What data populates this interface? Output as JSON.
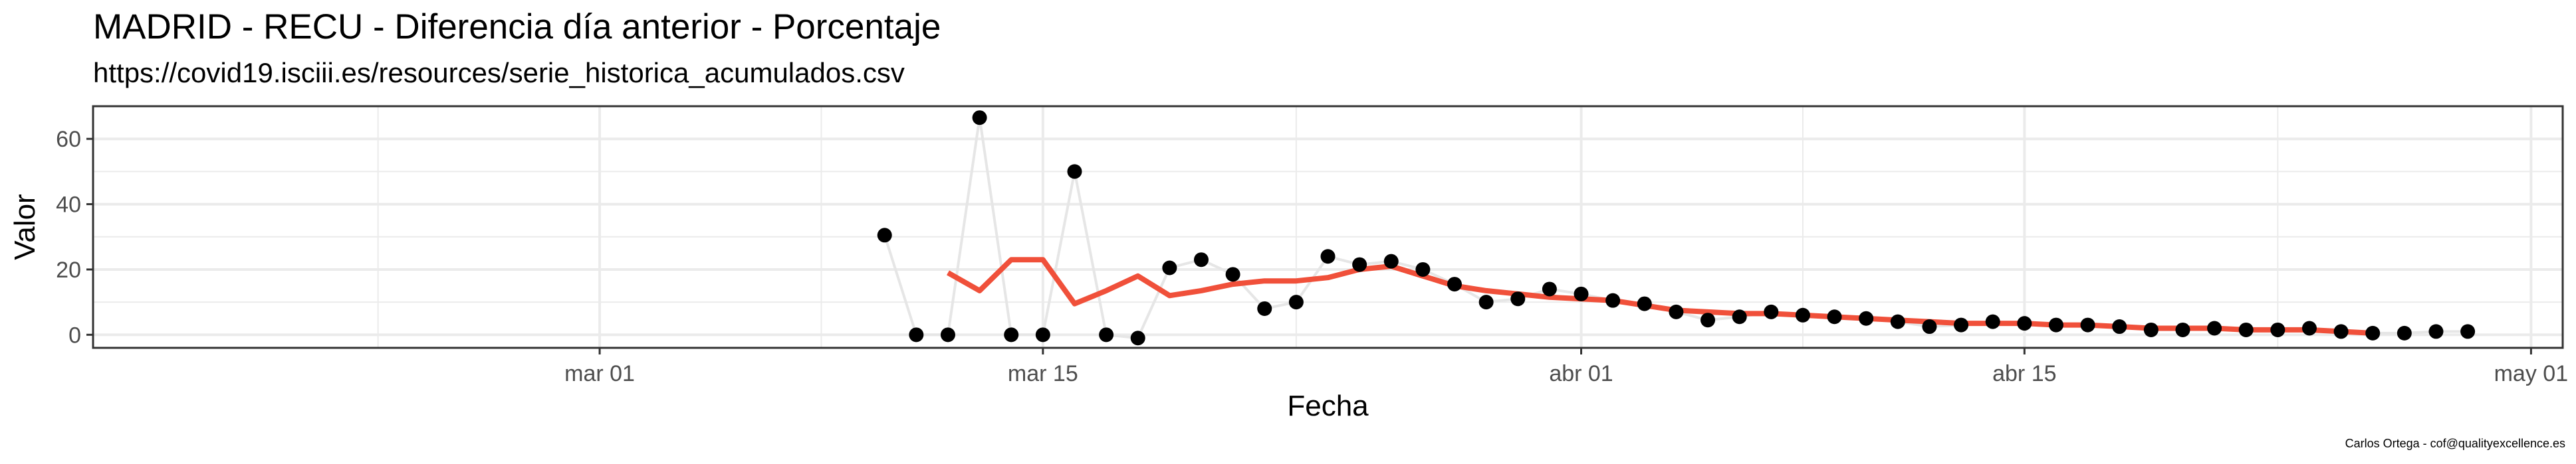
{
  "title": "MADRID - RECU - Diferencia día anterior - Porcentaje",
  "subtitle": "https://covid19.isciii.es/resources/serie_historica_acumulados.csv",
  "caption": "Carlos Ortega - cof@qualityexcellence.es",
  "chart_data": {
    "type": "line",
    "xlabel": "Fecha",
    "ylabel": "Valor",
    "xlim": [
      "2020-02-14",
      "2020-05-02"
    ],
    "ylim": [
      -4,
      70
    ],
    "grid": true,
    "x_ticks": [
      {
        "date": "2020-03-01",
        "label": "mar 01"
      },
      {
        "date": "2020-03-15",
        "label": "mar 15"
      },
      {
        "date": "2020-04-01",
        "label": "abr 01"
      },
      {
        "date": "2020-04-15",
        "label": "abr 15"
      },
      {
        "date": "2020-05-01",
        "label": "may 01"
      }
    ],
    "y_ticks": [
      0,
      20,
      40,
      60
    ],
    "colors": {
      "points": "#000000",
      "raw_line": "#e6e6e6",
      "smooth_line": "#f0503a",
      "panel_border": "#333333",
      "grid": "#ebebeb"
    },
    "series": [
      {
        "type": "scatter",
        "x": [
          "2020-03-10",
          "2020-03-11",
          "2020-03-12",
          "2020-03-13",
          "2020-03-14",
          "2020-03-15",
          "2020-03-16",
          "2020-03-17",
          "2020-03-18",
          "2020-03-19",
          "2020-03-20",
          "2020-03-21",
          "2020-03-22",
          "2020-03-23",
          "2020-03-24",
          "2020-03-25",
          "2020-03-26",
          "2020-03-27",
          "2020-03-28",
          "2020-03-29",
          "2020-03-30",
          "2020-03-31",
          "2020-04-01",
          "2020-04-02",
          "2020-04-03",
          "2020-04-04",
          "2020-04-05",
          "2020-04-06",
          "2020-04-07",
          "2020-04-08",
          "2020-04-09",
          "2020-04-10",
          "2020-04-11",
          "2020-04-12",
          "2020-04-13",
          "2020-04-14",
          "2020-04-15",
          "2020-04-16",
          "2020-04-17",
          "2020-04-18",
          "2020-04-19",
          "2020-04-20",
          "2020-04-21",
          "2020-04-22",
          "2020-04-23",
          "2020-04-24",
          "2020-04-25",
          "2020-04-26",
          "2020-04-27",
          "2020-04-28",
          "2020-04-29"
        ],
        "values": [
          30.5,
          0,
          0,
          66.5,
          0,
          0,
          50,
          0,
          -1,
          20.5,
          23,
          18.5,
          8,
          10,
          24,
          21.5,
          22.5,
          20,
          15.5,
          10,
          11,
          14,
          12.5,
          10.5,
          9.5,
          7,
          4.5,
          5.5,
          7,
          6,
          5.5,
          5,
          4,
          2.5,
          3,
          4,
          3.5,
          3,
          3,
          2.5,
          1.5,
          1.5,
          2,
          1.5,
          1.5,
          2,
          1,
          0.5,
          0.5,
          1,
          1
        ]
      },
      {
        "type": "line",
        "x": [
          "2020-03-12",
          "2020-03-13",
          "2020-03-14",
          "2020-03-15",
          "2020-03-16",
          "2020-03-17",
          "2020-03-18",
          "2020-03-19",
          "2020-03-20",
          "2020-03-21",
          "2020-03-22",
          "2020-03-23",
          "2020-03-24",
          "2020-03-25",
          "2020-03-26",
          "2020-03-27",
          "2020-03-28",
          "2020-03-29",
          "2020-03-30",
          "2020-03-31",
          "2020-04-01",
          "2020-04-02",
          "2020-04-03",
          "2020-04-04",
          "2020-04-05",
          "2020-04-06",
          "2020-04-07",
          "2020-04-08",
          "2020-04-09",
          "2020-04-10",
          "2020-04-11",
          "2020-04-12",
          "2020-04-13",
          "2020-04-14",
          "2020-04-15",
          "2020-04-16",
          "2020-04-17",
          "2020-04-18",
          "2020-04-19",
          "2020-04-20",
          "2020-04-21",
          "2020-04-22",
          "2020-04-23",
          "2020-04-24",
          "2020-04-25",
          "2020-04-26"
        ],
        "values": [
          19,
          13.5,
          23,
          23,
          9.5,
          13.5,
          18,
          12,
          13.5,
          15.5,
          16.5,
          16.5,
          17.5,
          20,
          21,
          18,
          15,
          13.5,
          12.5,
          11.5,
          11,
          10.5,
          9,
          7.5,
          7,
          6.5,
          6.5,
          6,
          5.5,
          5,
          4.5,
          4,
          3.5,
          3.5,
          3.5,
          3,
          3,
          2.5,
          2,
          2,
          2,
          1.5,
          1.5,
          1.5,
          1,
          0.5
        ]
      }
    ]
  }
}
